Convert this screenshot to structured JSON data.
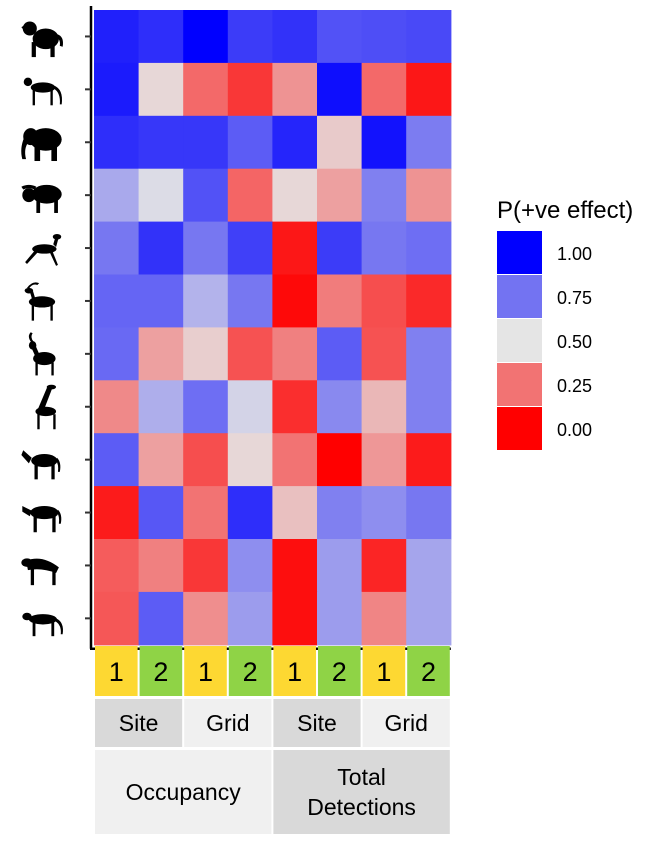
{
  "chart_data": {
    "type": "heatmap",
    "rows": [
      "baboon",
      "monkey",
      "elephant",
      "buffalo",
      "small-antelope",
      "antelope",
      "kudu",
      "giraffe",
      "zebra-1",
      "zebra-2",
      "hyena",
      "leopard"
    ],
    "columns": [
      {
        "period": "1",
        "scale": "Site",
        "response": "Occupancy"
      },
      {
        "period": "2",
        "scale": "Site",
        "response": "Occupancy"
      },
      {
        "period": "1",
        "scale": "Grid",
        "response": "Occupancy"
      },
      {
        "period": "2",
        "scale": "Grid",
        "response": "Occupancy"
      },
      {
        "period": "1",
        "scale": "Site",
        "response": "Total Detections"
      },
      {
        "period": "2",
        "scale": "Site",
        "response": "Total Detections"
      },
      {
        "period": "1",
        "scale": "Grid",
        "response": "Total Detections"
      },
      {
        "period": "2",
        "scale": "Grid",
        "response": "Total Detections"
      }
    ],
    "values": [
      [
        0.93,
        0.9,
        1.0,
        0.87,
        0.89,
        0.82,
        0.83,
        0.84
      ],
      [
        0.94,
        0.47,
        0.23,
        0.12,
        0.32,
        0.97,
        0.23,
        0.05
      ],
      [
        0.9,
        0.88,
        0.88,
        0.8,
        0.92,
        0.44,
        0.96,
        0.73
      ],
      [
        0.63,
        0.52,
        0.82,
        0.22,
        0.47,
        0.35,
        0.72,
        0.32
      ],
      [
        0.74,
        0.89,
        0.74,
        0.86,
        0.05,
        0.87,
        0.74,
        0.76
      ],
      [
        0.78,
        0.78,
        0.61,
        0.74,
        0.02,
        0.27,
        0.17,
        0.09
      ],
      [
        0.77,
        0.35,
        0.45,
        0.18,
        0.28,
        0.8,
        0.18,
        0.72
      ],
      [
        0.3,
        0.62,
        0.76,
        0.54,
        0.1,
        0.7,
        0.4,
        0.72
      ],
      [
        0.8,
        0.35,
        0.17,
        0.47,
        0.25,
        0.0,
        0.33,
        0.06
      ],
      [
        0.06,
        0.81,
        0.25,
        0.9,
        0.42,
        0.72,
        0.69,
        0.74
      ],
      [
        0.2,
        0.28,
        0.12,
        0.69,
        0.03,
        0.66,
        0.08,
        0.64
      ],
      [
        0.19,
        0.8,
        0.31,
        0.66,
        0.03,
        0.66,
        0.29,
        0.64
      ]
    ],
    "color_scale": {
      "low": "#ff0000",
      "mid": "#e5e5e5",
      "high": "#0000ff",
      "domain": [
        0,
        1
      ]
    },
    "legend": {
      "title": "P(+ve effect)",
      "breaks": [
        {
          "value": 1.0,
          "label": "1.00"
        },
        {
          "value": 0.75,
          "label": "0.75"
        },
        {
          "value": 0.5,
          "label": "0.50"
        },
        {
          "value": 0.25,
          "label": "0.25"
        },
        {
          "value": 0.0,
          "label": "0.00"
        }
      ],
      "placement": "right"
    },
    "grid": false,
    "period_colors": {
      "1": "#fdd832",
      "2": "#8fd346"
    },
    "scale_groups": [
      {
        "label": "Site",
        "span": 2
      },
      {
        "label": "Grid",
        "span": 2
      },
      {
        "label": "Site",
        "span": 2
      },
      {
        "label": "Grid",
        "span": 2
      }
    ],
    "response_groups": [
      {
        "label": "Occupancy",
        "span": 4
      },
      {
        "label": "Total\nDetections",
        "span": 4
      }
    ]
  }
}
